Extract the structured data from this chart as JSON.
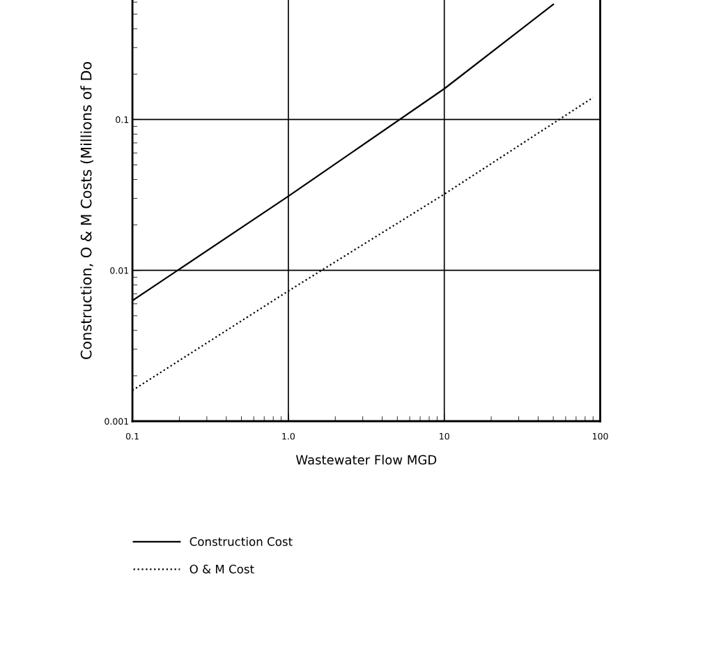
{
  "chart_data": {
    "type": "line",
    "xlabel": "Wastewater Flow MGD",
    "ylabel": "Construction, O & M Costs (Millions of Do",
    "log": "xy",
    "xlim": [
      0.1,
      100
    ],
    "ylim": [
      0.001,
      0.62
    ],
    "xticks": [
      {
        "value": 0.1,
        "label": "0.1"
      },
      {
        "value": 1,
        "label": "1.0"
      },
      10,
      100
    ],
    "yticks": [
      0.001,
      0.01,
      0.1
    ],
    "grid": true,
    "legend": "bottom",
    "series": [
      {
        "name": "Construction Cost",
        "color": "#000000",
        "line_style": "solid",
        "x": [
          0.1,
          1,
          10,
          50
        ],
        "values": [
          0.0063,
          0.031,
          0.16,
          0.58
        ]
      },
      {
        "name": "O & M Cost",
        "color": "#000000",
        "line_style": "dotted",
        "x": [
          0.1,
          1,
          10,
          90
        ],
        "values": [
          0.0016,
          0.0073,
          0.032,
          0.14
        ]
      }
    ]
  }
}
